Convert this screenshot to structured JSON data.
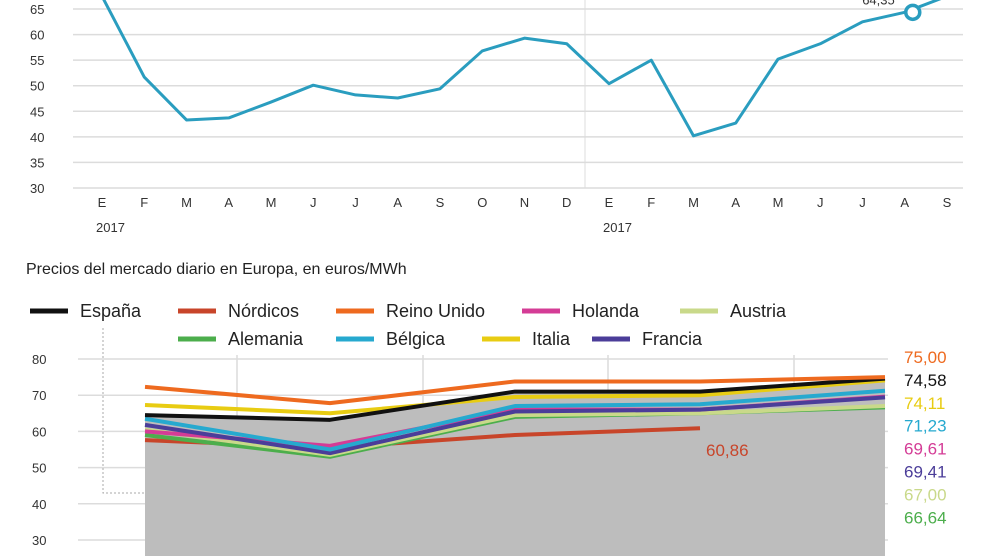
{
  "chart_data": [
    {
      "type": "line",
      "title": "",
      "xlabel": "",
      "ylabel": "",
      "ylim": [
        30,
        65
      ],
      "yticks": [
        30,
        35,
        40,
        45,
        50,
        55,
        60,
        65
      ],
      "grid": true,
      "categories": [
        "E",
        "F",
        "M",
        "A",
        "M",
        "J",
        "J",
        "A",
        "S",
        "O",
        "N",
        "D",
        "E",
        "F",
        "M",
        "A",
        "M",
        "J",
        "J",
        "A",
        "S"
      ],
      "year_labels": [
        {
          "index": 0,
          "label": "2017"
        },
        {
          "index": 12,
          "label": "2017"
        }
      ],
      "series": [
        {
          "color": "#2a9dbf",
          "values": [
            67.5,
            51.7,
            43.3,
            43.7,
            46.8,
            50.1,
            48.2,
            47.6,
            49.4,
            56.8,
            59.3,
            58.2,
            50.4,
            55.0,
            40.2,
            42.7,
            55.2,
            58.2,
            62.5,
            64.35,
            67.5
          ]
        }
      ],
      "annotation": {
        "index": 19,
        "label": "64,35"
      }
    },
    {
      "type": "line",
      "title": "Precios del mercado diario en Europa, en euros/MWh",
      "xlabel": "",
      "ylabel": "",
      "ylim": [
        30,
        80
      ],
      "yticks": [
        30,
        40,
        50,
        60,
        70,
        80
      ],
      "grid": true,
      "legend_placement": "top",
      "shaded_area": {
        "color": "#bdbdbd",
        "follows": "España"
      },
      "series": [
        {
          "name": "España",
          "color": "#111111",
          "values": [
            64.5,
            63.2,
            71.0,
            71.0,
            74.58
          ],
          "end_label": "74,58"
        },
        {
          "name": "Nórdicos",
          "color": "#c8452a",
          "values": [
            57.6,
            55.5,
            59.0,
            60.86,
            null
          ],
          "end_label": "60,86"
        },
        {
          "name": "Reino Unido",
          "color": "#ee6a1f",
          "values": [
            72.3,
            67.8,
            73.8,
            73.8,
            75.0
          ],
          "end_label": "75,00"
        },
        {
          "name": "Holanda",
          "color": "#d43c96",
          "values": [
            60.0,
            56.0,
            66.0,
            66.0,
            69.61
          ],
          "end_label": "69,61"
        },
        {
          "name": "Austria",
          "color": "#c9d98a",
          "values": [
            60.5,
            53.5,
            64.5,
            65.0,
            67.0
          ],
          "end_label": "67,00"
        },
        {
          "name": "Alemania",
          "color": "#4cae4c",
          "values": [
            59.0,
            53.0,
            64.0,
            65.0,
            66.64
          ],
          "end_label": "66,64"
        },
        {
          "name": "Bélgica",
          "color": "#26a9cf",
          "values": [
            63.5,
            55.0,
            67.0,
            67.5,
            71.23
          ],
          "end_label": "71,23"
        },
        {
          "name": "Italia",
          "color": "#e8cc12",
          "values": [
            67.3,
            65.0,
            69.5,
            70.0,
            74.11
          ],
          "end_label": "74,11"
        },
        {
          "name": "Francia",
          "color": "#4b3d99",
          "values": [
            61.8,
            54.0,
            65.5,
            66.0,
            69.41
          ],
          "end_label": "69,41"
        }
      ]
    }
  ]
}
